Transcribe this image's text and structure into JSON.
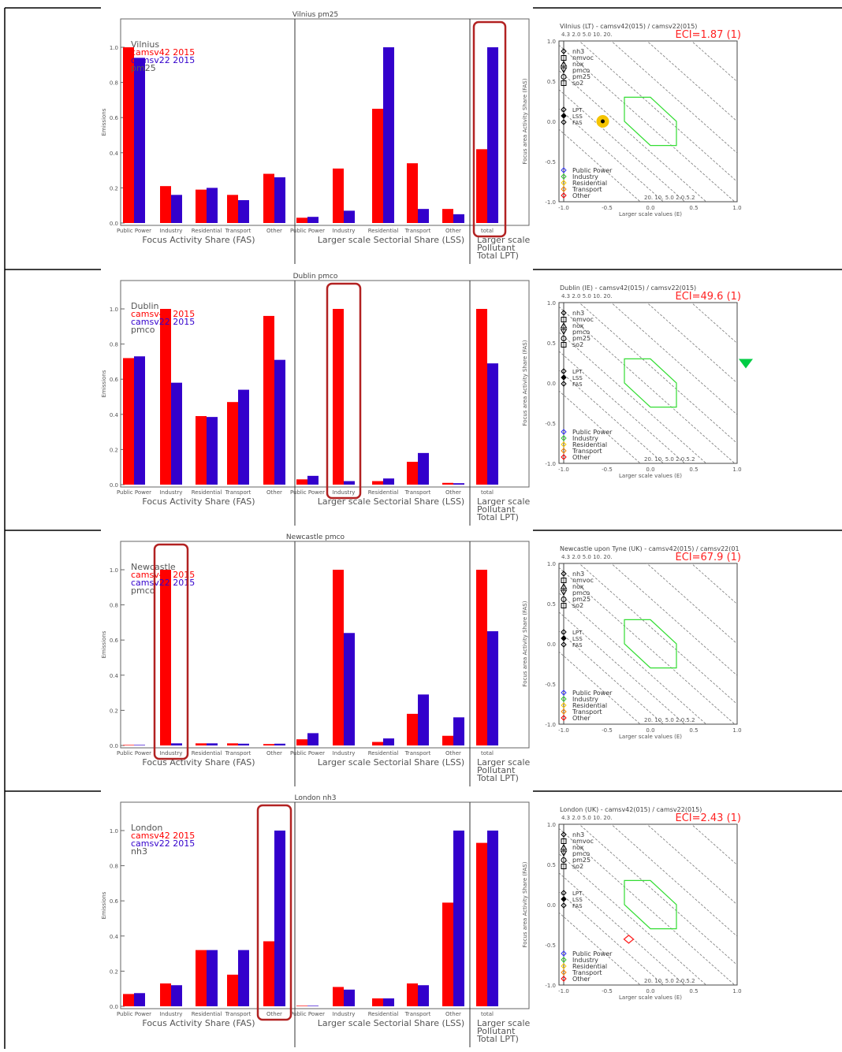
{
  "labels": {
    "emissions": "Emissions",
    "categories": [
      "Public Power",
      "Industry",
      "Residential",
      "Transport",
      "Other"
    ],
    "total": "total",
    "fas": "Focus Activity Share (FAS)",
    "lss": "Larger scale Sectorial Share (LSS)",
    "lpt": [
      "Larger scale",
      "Pollutant",
      "Total LPT)"
    ],
    "series": [
      "camsv42 2015",
      "camsv22 2015"
    ],
    "yticks": [
      "0.0",
      "0.2",
      "0.4",
      "0.6",
      "0.8",
      "1.0"
    ],
    "pollutant_legend": [
      "nh3",
      "nmvoc",
      "nox",
      "pmco",
      "pm25",
      "so2"
    ],
    "scale_legend": [
      "LPT",
      "LSS",
      "FAS"
    ],
    "sector_legend": [
      "Public Power",
      "Industry",
      "Residential",
      "Transport",
      "Other"
    ],
    "diagram_xlabel": "Larger scale values (E)",
    "diagram_ylabel": "Focus area Activity Share (FAS)",
    "diagram_xticks": [
      "-1.0",
      "-0.5",
      "0.0",
      "0.5",
      "1.0"
    ],
    "diagram_yticks": [
      "1.0",
      "0.5",
      "0.0",
      "-0.5",
      "-1.0"
    ],
    "diagram_bottom_numbers": "20.  10.   5.0       2.0.5.2",
    "diagram_top_numbers": "4.3 2.0         5.0   10.   20."
  },
  "colors": {
    "camsv42": "#ff0000",
    "camsv22": "#3300cc",
    "highlight": "#b22222",
    "hexagon": "#33dd33",
    "legend_sector": [
      "#3333ff",
      "#33cc33",
      "#ffcc00",
      "#ff8800",
      "#ff0000"
    ]
  },
  "chart_data": [
    {
      "type": "bar",
      "title": "Vilnius pm25",
      "legend": [
        "Vilnius",
        "camsv42 2015",
        "camsv22 2015",
        "pm25"
      ],
      "ylabel": "Emissions",
      "ylim": [
        0,
        1.0
      ],
      "groups": {
        "fas": {
          "camsv42": [
            1.0,
            0.21,
            0.19,
            0.16,
            0.28
          ],
          "camsv22": [
            0.94,
            0.16,
            0.2,
            0.13,
            0.26
          ]
        },
        "lss": {
          "camsv42": [
            0.03,
            0.31,
            0.65,
            0.34,
            0.08
          ],
          "camsv22": [
            0.035,
            0.07,
            1.0,
            0.08,
            0.05
          ]
        },
        "total": {
          "camsv42": 0.42,
          "camsv22": 1.0
        }
      },
      "highlight": "total",
      "diagram": {
        "title": "Vilnius (LT) - camsv42(015) / camsv22(015)",
        "eci": "ECI=1.87 (1)",
        "marker": {
          "type": "dot",
          "x": -0.55,
          "y": 0.0
        }
      }
    },
    {
      "type": "bar",
      "title": "Dublin pmco",
      "legend": [
        "Dublin",
        "camsv42 2015",
        "camsv22 2015",
        "pmco"
      ],
      "ylabel": "Emissions",
      "ylim": [
        0,
        1.0
      ],
      "groups": {
        "fas": {
          "camsv42": [
            0.72,
            1.0,
            0.39,
            0.47,
            0.96
          ],
          "camsv22": [
            0.73,
            0.58,
            0.385,
            0.54,
            0.71
          ]
        },
        "lss": {
          "camsv42": [
            0.03,
            1.0,
            0.02,
            0.13,
            0.01
          ],
          "camsv22": [
            0.05,
            0.02,
            0.035,
            0.18,
            0.008
          ]
        },
        "total": {
          "camsv42": 1.0,
          "camsv22": 0.69
        }
      },
      "highlight": "lss-1",
      "diagram": {
        "title": "Dublin (IE) - camsv42(015) / camsv22(015)",
        "eci": "ECI=49.6 (1)",
        "marker": {
          "type": "triangle-green",
          "x": 1.1,
          "y": 0.24
        }
      }
    },
    {
      "type": "bar",
      "title": "Newcastle pmco",
      "legend": [
        "Newcastle",
        "camsv42 2015",
        "camsv22 2015",
        "pmco"
      ],
      "ylabel": "Emissions",
      "ylim": [
        0,
        1.0
      ],
      "groups": {
        "fas": {
          "camsv42": [
            0.003,
            1.0,
            0.012,
            0.012,
            0.008
          ],
          "camsv22": [
            0.003,
            0.012,
            0.012,
            0.01,
            0.01
          ]
        },
        "lss": {
          "camsv42": [
            0.035,
            1.0,
            0.02,
            0.18,
            0.055
          ],
          "camsv22": [
            0.07,
            0.64,
            0.04,
            0.29,
            0.16
          ]
        },
        "total": {
          "camsv42": 1.0,
          "camsv22": 0.65
        }
      },
      "highlight": "fas-1",
      "diagram": {
        "title": "Newcastle upon Tyne (UK) - camsv42(015) / camsv22(01",
        "eci": "ECI=67.9 (1)",
        "marker": null
      }
    },
    {
      "type": "bar",
      "title": "London nh3",
      "legend": [
        "London",
        "camsv42 2015",
        "camsv22 2015",
        "nh3"
      ],
      "ylabel": "Emissions",
      "ylim": [
        0,
        1.0
      ],
      "groups": {
        "fas": {
          "camsv42": [
            0.07,
            0.13,
            0.32,
            0.18,
            0.37
          ],
          "camsv22": [
            0.075,
            0.12,
            0.32,
            0.32,
            1.0
          ]
        },
        "lss": {
          "camsv42": [
            0.003,
            0.11,
            0.045,
            0.13,
            0.59
          ],
          "camsv22": [
            0.003,
            0.095,
            0.045,
            0.12,
            1.0
          ]
        },
        "total": {
          "camsv42": 0.93,
          "camsv22": 1.0
        }
      },
      "highlight": "fas-4",
      "diagram": {
        "title": "London (UK) - camsv42(015) / camsv22(015)",
        "eci": "ECI=2.43 (1)",
        "marker": {
          "type": "diamond-red",
          "x": -0.25,
          "y": -0.43
        }
      }
    }
  ]
}
